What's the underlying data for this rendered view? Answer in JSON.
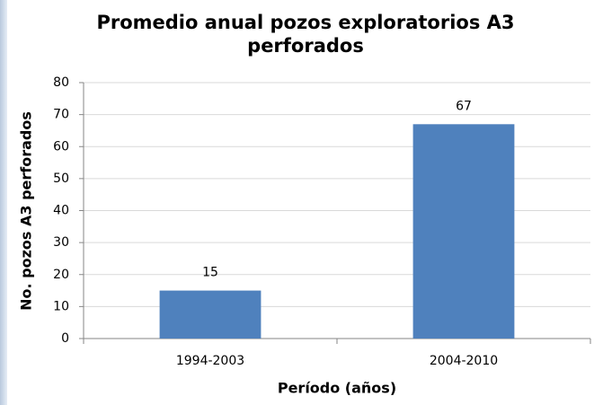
{
  "chart_data": {
    "type": "bar",
    "title": "Promedio anual pozos exploratorios A3 perforados",
    "x_label": "Período (años)",
    "y_label": "No. pozos A3 perforados",
    "categories": [
      "1994-2003",
      "2004-2010"
    ],
    "values": [
      15,
      67
    ],
    "color": "#4f81bd",
    "ylim": [
      0,
      80
    ],
    "yticks": [
      0,
      10,
      20,
      30,
      40,
      50,
      60,
      70,
      80
    ],
    "grid": true
  }
}
